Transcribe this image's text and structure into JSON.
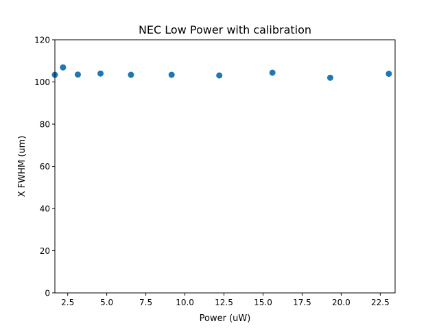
{
  "chart_data": {
    "type": "scatter",
    "title": "NEC Low Power with calibration",
    "xlabel": "Power (uW)",
    "ylabel": "X FWHM (um)",
    "xlim": [
      1.68,
      23.45
    ],
    "ylim": [
      0,
      120
    ],
    "x_ticks": [
      2.5,
      5.0,
      7.5,
      10.0,
      12.5,
      15.0,
      17.5,
      20.0,
      22.5
    ],
    "x_tick_labels": [
      "2.5",
      "5.0",
      "7.5",
      "10.0",
      "12.5",
      "15.0",
      "17.5",
      "20.0",
      "22.5"
    ],
    "y_ticks": [
      0,
      20,
      40,
      60,
      80,
      100,
      120
    ],
    "y_tick_labels": [
      "0",
      "20",
      "40",
      "60",
      "80",
      "100",
      "120"
    ],
    "grid": false,
    "marker_color": "#1f77b4",
    "series": [
      {
        "x": [
          1.68,
          2.2,
          3.15,
          4.6,
          6.55,
          9.15,
          12.2,
          15.6,
          19.3,
          23.05
        ],
        "y": [
          103.4,
          106.9,
          103.5,
          104.0,
          103.4,
          103.4,
          103.1,
          104.4,
          102.0,
          103.9
        ]
      }
    ]
  }
}
